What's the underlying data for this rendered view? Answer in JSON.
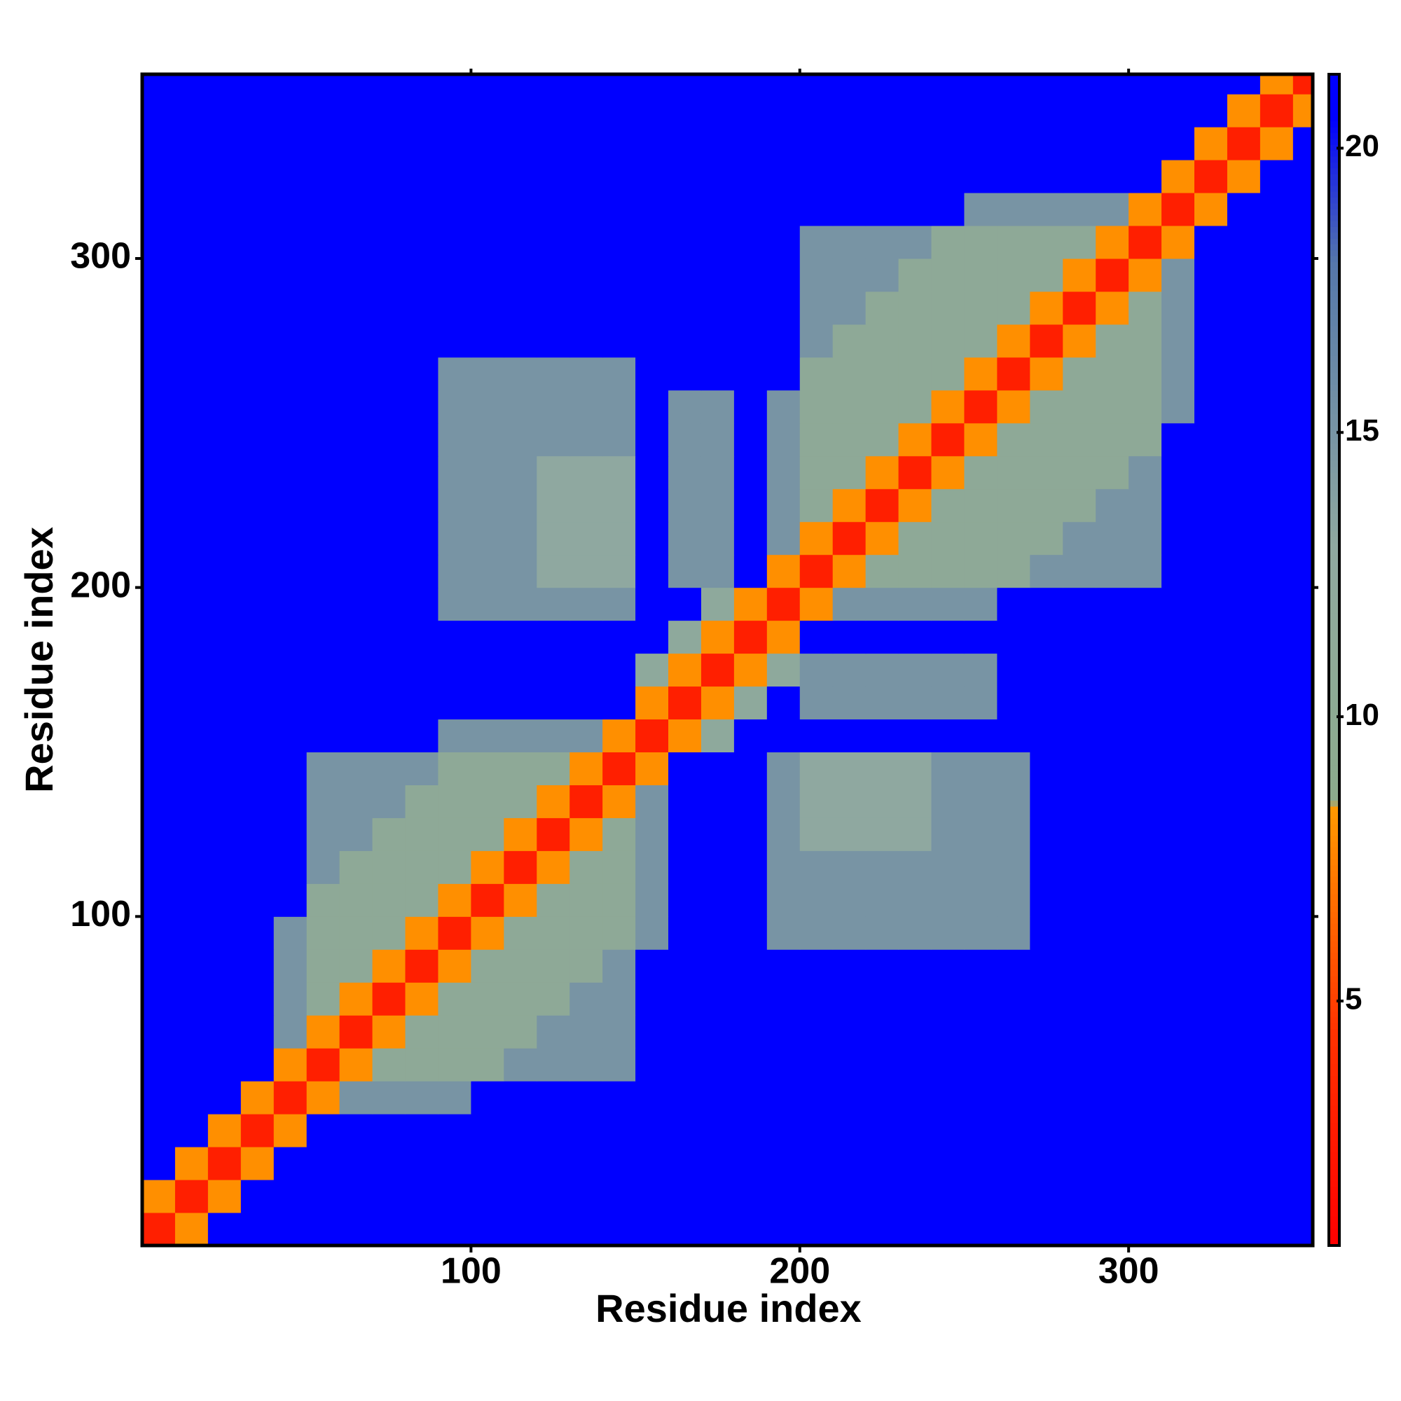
{
  "chart_data": {
    "type": "heatmap",
    "xlabel": "Residue index",
    "ylabel": "Residue index",
    "bins": [
      0,
      10,
      20,
      30,
      40,
      50,
      60,
      70,
      80,
      90,
      100,
      110,
      120,
      130,
      140,
      150,
      160,
      170,
      180,
      190,
      200,
      210,
      220,
      230,
      240,
      250,
      260,
      270,
      280,
      290,
      300,
      310,
      320,
      330,
      340,
      350,
      356
    ],
    "xlim": [
      0,
      356
    ],
    "ylim": [
      0,
      356
    ],
    "xticks": [
      100,
      200,
      300
    ],
    "yticks": [
      100,
      200,
      300
    ],
    "zlim": [
      0.7,
      21.3
    ],
    "zticks": [
      5,
      10,
      15,
      20
    ],
    "colorscale": [
      [
        0.7,
        "#ff0000"
      ],
      [
        4.5,
        "#ff3300"
      ],
      [
        8.4,
        "#ff9900"
      ],
      [
        8.5,
        "#8cab8c"
      ],
      [
        13,
        "#8fa8a0"
      ],
      [
        18,
        "#5577aa"
      ],
      [
        20.5,
        "#0000ff"
      ],
      [
        21.3,
        "#0000ff"
      ]
    ],
    "z": [
      [
        3,
        8,
        21,
        21,
        21,
        21,
        21,
        21,
        21,
        21,
        21,
        21,
        21,
        21,
        21,
        21,
        21,
        21,
        21,
        21,
        21,
        21,
        21,
        21,
        21,
        21,
        21,
        21,
        21,
        21,
        21,
        21,
        21,
        21,
        21,
        21
      ],
      [
        8,
        3,
        8,
        21,
        21,
        21,
        21,
        21,
        21,
        21,
        21,
        21,
        21,
        21,
        21,
        21,
        21,
        21,
        21,
        21,
        21,
        21,
        21,
        21,
        21,
        21,
        21,
        21,
        21,
        21,
        21,
        21,
        21,
        21,
        21,
        21
      ],
      [
        21,
        8,
        3,
        8,
        21,
        21,
        21,
        21,
        21,
        21,
        21,
        21,
        21,
        21,
        21,
        21,
        21,
        21,
        21,
        21,
        21,
        21,
        21,
        21,
        21,
        21,
        21,
        21,
        21,
        21,
        21,
        21,
        21,
        21,
        21,
        21
      ],
      [
        21,
        21,
        8,
        3,
        8,
        21,
        21,
        21,
        21,
        21,
        21,
        21,
        21,
        21,
        21,
        21,
        21,
        21,
        21,
        21,
        21,
        21,
        21,
        21,
        21,
        21,
        21,
        21,
        21,
        21,
        21,
        21,
        21,
        21,
        21,
        21
      ],
      [
        21,
        21,
        21,
        8,
        3,
        8,
        15,
        15,
        15,
        15,
        21,
        21,
        21,
        21,
        21,
        21,
        21,
        21,
        21,
        21,
        21,
        21,
        21,
        21,
        21,
        21,
        21,
        21,
        21,
        21,
        21,
        21,
        21,
        21,
        21,
        21
      ],
      [
        21,
        21,
        21,
        21,
        8,
        3,
        8,
        11,
        11,
        11,
        11,
        15,
        15,
        15,
        15,
        21,
        21,
        21,
        21,
        21,
        21,
        21,
        21,
        21,
        21,
        21,
        21,
        21,
        21,
        21,
        21,
        21,
        21,
        21,
        21,
        21
      ],
      [
        21,
        21,
        21,
        21,
        15,
        8,
        3,
        8,
        11,
        11,
        11,
        11,
        15,
        15,
        15,
        21,
        21,
        21,
        21,
        21,
        21,
        21,
        21,
        21,
        21,
        21,
        21,
        21,
        21,
        21,
        21,
        21,
        21,
        21,
        21,
        21
      ],
      [
        21,
        21,
        21,
        21,
        15,
        11,
        8,
        3,
        8,
        11,
        11,
        11,
        11,
        15,
        15,
        21,
        21,
        21,
        21,
        21,
        21,
        21,
        21,
        21,
        21,
        21,
        21,
        21,
        21,
        21,
        21,
        21,
        21,
        21,
        21,
        21
      ],
      [
        21,
        21,
        21,
        21,
        15,
        11,
        11,
        8,
        3,
        8,
        11,
        11,
        11,
        11,
        15,
        21,
        21,
        21,
        21,
        21,
        21,
        21,
        21,
        21,
        21,
        21,
        21,
        21,
        21,
        21,
        21,
        21,
        21,
        21,
        21,
        21
      ],
      [
        21,
        21,
        21,
        21,
        15,
        11,
        11,
        11,
        8,
        3,
        8,
        11,
        11,
        11,
        11,
        15,
        21,
        21,
        21,
        15,
        15,
        15,
        15,
        15,
        15,
        15,
        15,
        21,
        21,
        21,
        21,
        21,
        21,
        21,
        21,
        21
      ],
      [
        21,
        21,
        21,
        21,
        21,
        11,
        11,
        11,
        11,
        8,
        3,
        8,
        11,
        11,
        11,
        15,
        21,
        21,
        21,
        15,
        15,
        15,
        15,
        15,
        15,
        15,
        15,
        21,
        21,
        21,
        21,
        21,
        21,
        21,
        21,
        21
      ],
      [
        21,
        21,
        21,
        21,
        21,
        15,
        11,
        11,
        11,
        11,
        8,
        3,
        8,
        11,
        11,
        15,
        21,
        21,
        21,
        15,
        15,
        15,
        15,
        15,
        15,
        15,
        15,
        21,
        21,
        21,
        21,
        21,
        21,
        21,
        21,
        21
      ],
      [
        21,
        21,
        21,
        21,
        21,
        15,
        15,
        11,
        11,
        11,
        11,
        8,
        3,
        8,
        11,
        15,
        21,
        21,
        21,
        15,
        13,
        13,
        13,
        13,
        15,
        15,
        15,
        21,
        21,
        21,
        21,
        21,
        21,
        21,
        21,
        21
      ],
      [
        21,
        21,
        21,
        21,
        21,
        15,
        15,
        15,
        11,
        11,
        11,
        11,
        8,
        3,
        8,
        15,
        21,
        21,
        21,
        15,
        13,
        13,
        13,
        13,
        15,
        15,
        15,
        21,
        21,
        21,
        21,
        21,
        21,
        21,
        21,
        21
      ],
      [
        21,
        21,
        21,
        21,
        21,
        15,
        15,
        15,
        15,
        11,
        11,
        11,
        11,
        8,
        3,
        8,
        21,
        21,
        21,
        15,
        13,
        13,
        13,
        13,
        15,
        15,
        15,
        21,
        21,
        21,
        21,
        21,
        21,
        21,
        21,
        21
      ],
      [
        21,
        21,
        21,
        21,
        21,
        21,
        21,
        21,
        21,
        15,
        15,
        15,
        15,
        15,
        8,
        3,
        8,
        12,
        21,
        21,
        21,
        21,
        21,
        21,
        21,
        21,
        21,
        21,
        21,
        21,
        21,
        21,
        21,
        21,
        21,
        21
      ],
      [
        21,
        21,
        21,
        21,
        21,
        21,
        21,
        21,
        21,
        21,
        21,
        21,
        21,
        21,
        21,
        8,
        3,
        8,
        12,
        21,
        15,
        15,
        15,
        15,
        15,
        15,
        21,
        21,
        21,
        21,
        21,
        21,
        21,
        21,
        21,
        21
      ],
      [
        21,
        21,
        21,
        21,
        21,
        21,
        21,
        21,
        21,
        21,
        21,
        21,
        21,
        21,
        21,
        12,
        8,
        3,
        8,
        12,
        15,
        15,
        15,
        15,
        15,
        15,
        21,
        21,
        21,
        21,
        21,
        21,
        21,
        21,
        21,
        21
      ],
      [
        21,
        21,
        21,
        21,
        21,
        21,
        21,
        21,
        21,
        21,
        21,
        21,
        21,
        21,
        21,
        21,
        12,
        8,
        3,
        8,
        21,
        21,
        21,
        21,
        21,
        21,
        21,
        21,
        21,
        21,
        21,
        21,
        21,
        21,
        21,
        21
      ],
      [
        21,
        21,
        21,
        21,
        21,
        21,
        21,
        21,
        21,
        15,
        15,
        15,
        15,
        15,
        15,
        21,
        21,
        12,
        8,
        3,
        8,
        15,
        15,
        15,
        15,
        15,
        21,
        21,
        21,
        21,
        21,
        21,
        21,
        21,
        21,
        21
      ],
      [
        21,
        21,
        21,
        21,
        21,
        21,
        21,
        21,
        21,
        15,
        15,
        15,
        13,
        13,
        13,
        21,
        15,
        15,
        21,
        8,
        3,
        8,
        11,
        11,
        11,
        11,
        11,
        15,
        15,
        15,
        15,
        21,
        21,
        21,
        21,
        21
      ],
      [
        21,
        21,
        21,
        21,
        21,
        21,
        21,
        21,
        21,
        15,
        15,
        15,
        13,
        13,
        13,
        21,
        15,
        15,
        21,
        15,
        8,
        3,
        8,
        11,
        11,
        11,
        11,
        11,
        15,
        15,
        15,
        21,
        21,
        21,
        21,
        21
      ],
      [
        21,
        21,
        21,
        21,
        21,
        21,
        21,
        21,
        21,
        15,
        15,
        15,
        13,
        13,
        13,
        21,
        15,
        15,
        21,
        15,
        11,
        8,
        3,
        8,
        11,
        11,
        11,
        11,
        11,
        15,
        15,
        21,
        21,
        21,
        21,
        21
      ],
      [
        21,
        21,
        21,
        21,
        21,
        21,
        21,
        21,
        21,
        15,
        15,
        15,
        13,
        13,
        13,
        21,
        15,
        15,
        21,
        15,
        11,
        11,
        8,
        3,
        8,
        11,
        11,
        11,
        11,
        11,
        15,
        21,
        21,
        21,
        21,
        21
      ],
      [
        21,
        21,
        21,
        21,
        21,
        21,
        21,
        21,
        21,
        15,
        15,
        15,
        15,
        15,
        15,
        21,
        15,
        15,
        21,
        15,
        11,
        11,
        11,
        8,
        3,
        8,
        11,
        11,
        11,
        11,
        11,
        21,
        21,
        21,
        21,
        21
      ],
      [
        21,
        21,
        21,
        21,
        21,
        21,
        21,
        21,
        21,
        15,
        15,
        15,
        15,
        15,
        15,
        21,
        15,
        15,
        21,
        15,
        11,
        11,
        11,
        11,
        8,
        3,
        8,
        11,
        11,
        11,
        11,
        15,
        21,
        21,
        21,
        21
      ],
      [
        21,
        21,
        21,
        21,
        21,
        21,
        21,
        21,
        21,
        15,
        15,
        15,
        15,
        15,
        15,
        21,
        21,
        21,
        21,
        21,
        11,
        11,
        11,
        11,
        11,
        8,
        3,
        8,
        11,
        11,
        11,
        15,
        21,
        21,
        21,
        21
      ],
      [
        21,
        21,
        21,
        21,
        21,
        21,
        21,
        21,
        21,
        21,
        21,
        21,
        21,
        21,
        21,
        21,
        21,
        21,
        21,
        21,
        15,
        11,
        11,
        11,
        11,
        11,
        8,
        3,
        8,
        11,
        11,
        15,
        21,
        21,
        21,
        21
      ],
      [
        21,
        21,
        21,
        21,
        21,
        21,
        21,
        21,
        21,
        21,
        21,
        21,
        21,
        21,
        21,
        21,
        21,
        21,
        21,
        21,
        15,
        15,
        11,
        11,
        11,
        11,
        11,
        8,
        3,
        8,
        11,
        15,
        21,
        21,
        21,
        21
      ],
      [
        21,
        21,
        21,
        21,
        21,
        21,
        21,
        21,
        21,
        21,
        21,
        21,
        21,
        21,
        21,
        21,
        21,
        21,
        21,
        21,
        15,
        15,
        15,
        11,
        11,
        11,
        11,
        11,
        8,
        3,
        8,
        15,
        21,
        21,
        21,
        21
      ],
      [
        21,
        21,
        21,
        21,
        21,
        21,
        21,
        21,
        21,
        21,
        21,
        21,
        21,
        21,
        21,
        21,
        21,
        21,
        21,
        21,
        15,
        15,
        15,
        15,
        11,
        11,
        11,
        11,
        11,
        8,
        3,
        8,
        21,
        21,
        21,
        21
      ],
      [
        21,
        21,
        21,
        21,
        21,
        21,
        21,
        21,
        21,
        21,
        21,
        21,
        21,
        21,
        21,
        21,
        21,
        21,
        21,
        21,
        21,
        21,
        21,
        21,
        21,
        15,
        15,
        15,
        15,
        15,
        8,
        3,
        8,
        21,
        21,
        21
      ],
      [
        21,
        21,
        21,
        21,
        21,
        21,
        21,
        21,
        21,
        21,
        21,
        21,
        21,
        21,
        21,
        21,
        21,
        21,
        21,
        21,
        21,
        21,
        21,
        21,
        21,
        21,
        21,
        21,
        21,
        21,
        21,
        8,
        3,
        8,
        21,
        21
      ],
      [
        21,
        21,
        21,
        21,
        21,
        21,
        21,
        21,
        21,
        21,
        21,
        21,
        21,
        21,
        21,
        21,
        21,
        21,
        21,
        21,
        21,
        21,
        21,
        21,
        21,
        21,
        21,
        21,
        21,
        21,
        21,
        21,
        8,
        3,
        8,
        21
      ],
      [
        21,
        21,
        21,
        21,
        21,
        21,
        21,
        21,
        21,
        21,
        21,
        21,
        21,
        21,
        21,
        21,
        21,
        21,
        21,
        21,
        21,
        21,
        21,
        21,
        21,
        21,
        21,
        21,
        21,
        21,
        21,
        21,
        21,
        8,
        3,
        8
      ],
      [
        21,
        21,
        21,
        21,
        21,
        21,
        21,
        21,
        21,
        21,
        21,
        21,
        21,
        21,
        21,
        21,
        21,
        21,
        21,
        21,
        21,
        21,
        21,
        21,
        21,
        21,
        21,
        21,
        21,
        21,
        21,
        21,
        21,
        21,
        8,
        3
      ]
    ]
  }
}
